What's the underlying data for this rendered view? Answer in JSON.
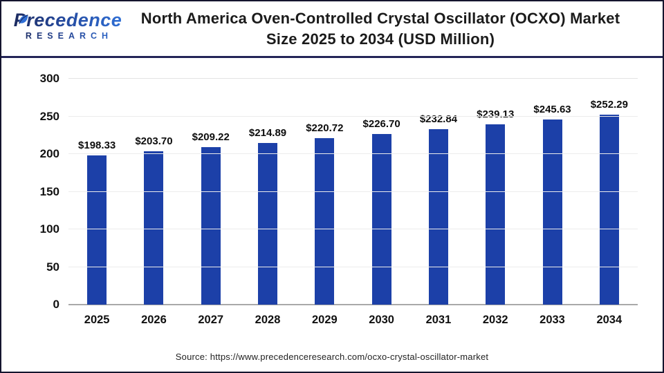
{
  "header": {
    "logo": {
      "line1": "Precedence",
      "line2": "RESEARCH"
    },
    "title_line1": "North America Oven-Controlled Crystal Oscillator (OCXO) Market",
    "title_line2": "Size 2025 to 2034 (USD Million)"
  },
  "chart_data": {
    "type": "bar",
    "title": "North America Oven-Controlled Crystal Oscillator (OCXO) Market Size 2025 to 2034 (USD Million)",
    "categories": [
      "2025",
      "2026",
      "2027",
      "2028",
      "2029",
      "2030",
      "2031",
      "2032",
      "2033",
      "2034"
    ],
    "values": [
      198.33,
      203.7,
      209.22,
      214.89,
      220.72,
      226.7,
      232.84,
      239.13,
      245.63,
      252.29
    ],
    "value_labels": [
      "$198.33",
      "$203.70",
      "$209.22",
      "$214.89",
      "$220.72",
      "$226.70",
      "$232.84",
      "$239.13",
      "$245.63",
      "$252.29"
    ],
    "xlabel": "",
    "ylabel": "",
    "ylim": [
      0,
      300
    ],
    "yticks": [
      0,
      50,
      100,
      150,
      200,
      250,
      300
    ],
    "grid": true,
    "legend": "none",
    "bar_color": "#1C40A8"
  },
  "footer": {
    "source": "Source: https://www.precedenceresearch.com/ocxo-crystal-oscillator-market"
  },
  "colors": {
    "bar": "#1C40A8",
    "divider": "#232457",
    "frame_border": "#14142e",
    "gridline": "#ececec",
    "axis_line": "#a9a9a9",
    "logo_navy": "#1c2a5e",
    "logo_blue": "#2f6fd6"
  }
}
